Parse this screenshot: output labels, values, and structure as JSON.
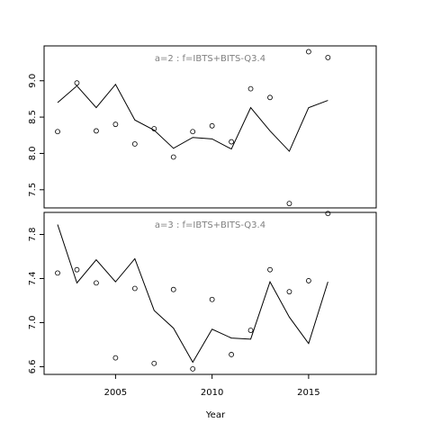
{
  "chart_data": {
    "type": "line",
    "xlabel": "Year",
    "x_ticks": [
      2005,
      2010,
      2015
    ],
    "xlim": [
      2001.3,
      2018.5
    ],
    "panels": [
      {
        "title": "a=2  :  f=IBTS+BITS-Q3.4",
        "ylim": [
          7.25,
          9.48
        ],
        "y_ticks": [
          7.5,
          8.0,
          8.5,
          9.0
        ],
        "y_tick_labels": [
          "7.5",
          "8.0",
          "8.5",
          "9.0"
        ],
        "series": [
          {
            "kind": "line",
            "x": [
              2002,
              2003,
              2004,
              2005,
              2006,
              2007,
              2008,
              2009,
              2010,
              2011,
              2012,
              2013,
              2014,
              2015,
              2016
            ],
            "y": [
              8.7,
              8.93,
              8.63,
              8.95,
              8.46,
              8.32,
              8.07,
              8.22,
              8.2,
              8.06,
              8.63,
              8.31,
              8.03,
              8.63,
              8.73
            ]
          },
          {
            "kind": "points",
            "x": [
              2002,
              2003,
              2004,
              2005,
              2006,
              2007,
              2008,
              2009,
              2010,
              2011,
              2012,
              2013,
              2014,
              2015,
              2016
            ],
            "y": [
              8.3,
              8.97,
              8.31,
              8.4,
              8.13,
              8.34,
              7.95,
              8.3,
              8.38,
              8.16,
              8.89,
              8.77,
              7.31,
              9.4,
              9.32
            ]
          }
        ]
      },
      {
        "title": "a=3  :  f=IBTS+BITS-Q3.4",
        "ylim": [
          6.53,
          8.0
        ],
        "y_ticks": [
          6.6,
          7.0,
          7.4,
          7.8
        ],
        "y_tick_labels": [
          "6.6",
          "7.0",
          "7.4",
          "7.8"
        ],
        "series": [
          {
            "kind": "line",
            "x": [
              2002,
              2003,
              2004,
              2005,
              2006,
              2007,
              2008,
              2009,
              2010,
              2011,
              2012,
              2013,
              2014,
              2015,
              2016
            ],
            "y": [
              7.89,
              7.36,
              7.57,
              7.37,
              7.58,
              7.11,
              6.95,
              6.64,
              6.94,
              6.86,
              6.85,
              7.37,
              7.05,
              6.81,
              7.37
            ]
          },
          {
            "kind": "points",
            "x": [
              2002,
              2003,
              2004,
              2005,
              2006,
              2007,
              2008,
              2009,
              2010,
              2011,
              2012,
              2013,
              2014,
              2015,
              2016
            ],
            "y": [
              7.45,
              7.48,
              7.36,
              6.68,
              7.31,
              6.63,
              7.3,
              6.58,
              7.21,
              6.71,
              6.93,
              7.48,
              7.28,
              7.38,
              7.99
            ]
          }
        ]
      }
    ]
  }
}
